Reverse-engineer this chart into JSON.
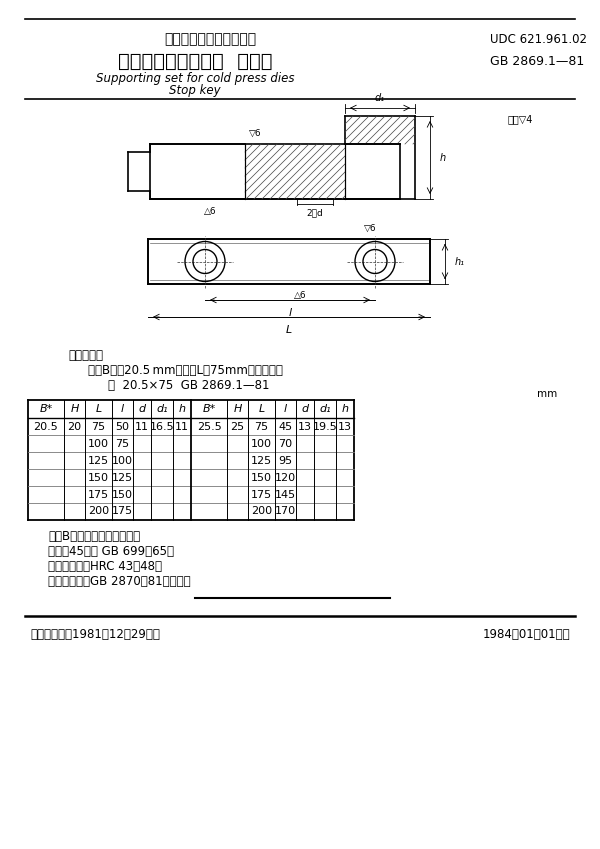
{
  "title_cn": "中华人民共和国国家标准",
  "udc": "UDC 621.961.02",
  "standard_name_cn": "冷冲模限位支承装置  止退键",
  "standard_number": "GB 2869.1—81",
  "subtitle_en1": "Supporting set for cold press dies",
  "subtitle_en2": "Stop key",
  "marking_example_label": "标记示例：",
  "marking_example_line1": "宽度B＊＝20.5 mm、长度L＝75mm的止退键；",
  "marking_example_line2": "键  20.5×75  GB 2869.1—81",
  "notes": [
    "注：B＊尺寸包括修正余量。",
    "材料：45号钢 GB 699－65。",
    "热处理：硬度HRC 43～48。",
    "技术条件：按GB 2870－81的规定。"
  ],
  "footer_left": "国家标准总局1981－12－29发布",
  "footer_right": "1984－01－01实施",
  "unit_label": "mm",
  "table_data_left": [
    [
      "20.5",
      "20",
      "75",
      "50",
      "11",
      "16.5",
      "11"
    ],
    [
      "",
      "",
      "100",
      "75",
      "",
      "",
      ""
    ],
    [
      "",
      "",
      "125",
      "100",
      "",
      "",
      ""
    ],
    [
      "",
      "",
      "150",
      "125",
      "",
      "",
      ""
    ],
    [
      "",
      "",
      "175",
      "150",
      "",
      "",
      ""
    ],
    [
      "",
      "",
      "200",
      "175",
      "",
      "",
      ""
    ]
  ],
  "table_data_right": [
    [
      "25.5",
      "25",
      "75",
      "45",
      "13",
      "19.5",
      "13"
    ],
    [
      "",
      "",
      "100",
      "70",
      "",
      "",
      ""
    ],
    [
      "",
      "",
      "125",
      "95",
      "",
      "",
      ""
    ],
    [
      "",
      "",
      "150",
      "120",
      "",
      "",
      ""
    ],
    [
      "",
      "",
      "175",
      "145",
      "",
      "",
      ""
    ],
    [
      "",
      "",
      "200",
      "170",
      "",
      "",
      ""
    ]
  ],
  "bg_color": "#ffffff"
}
